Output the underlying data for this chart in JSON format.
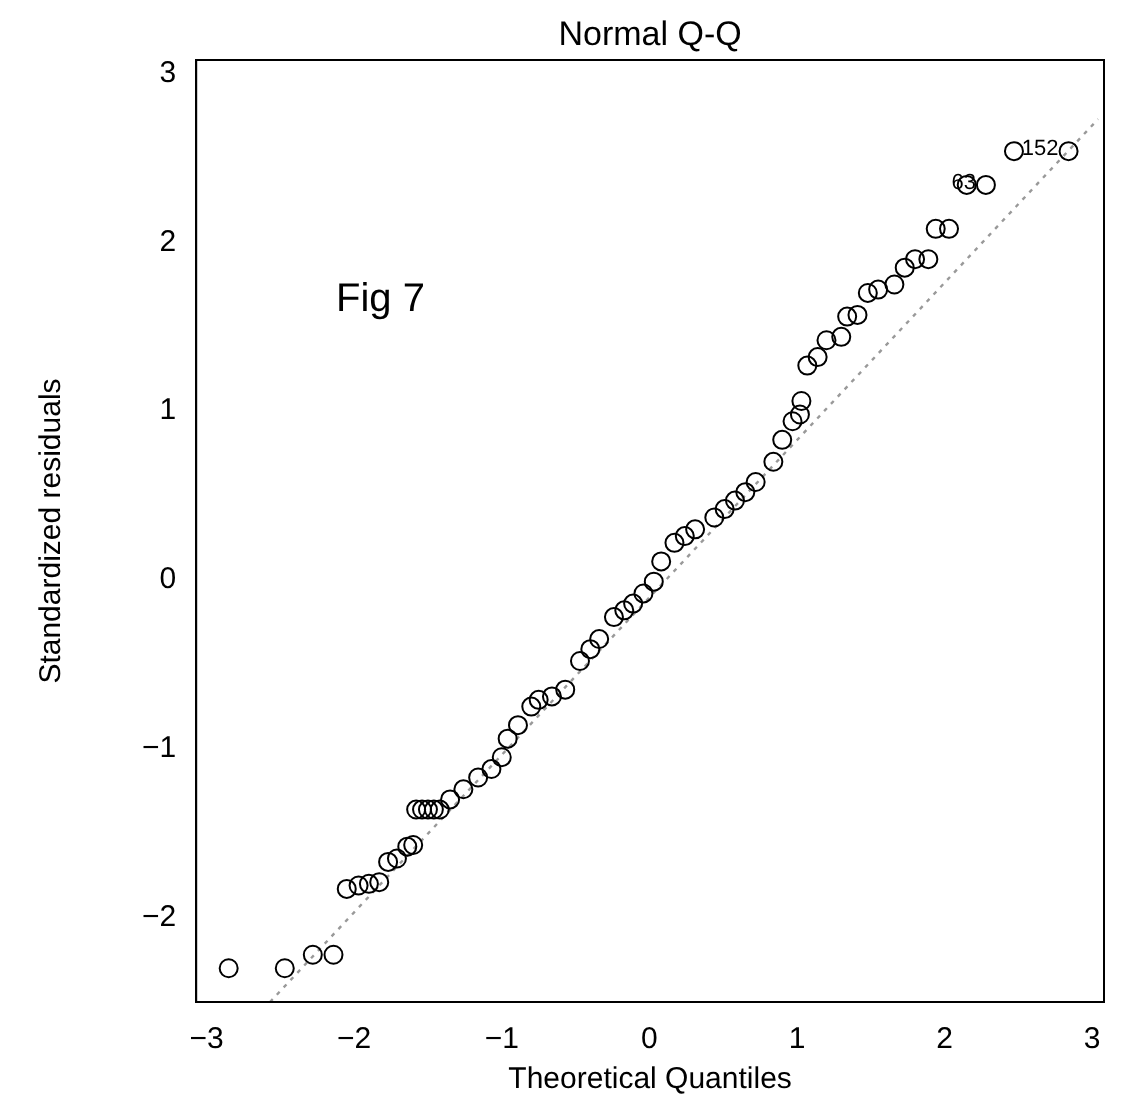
{
  "chart_data": {
    "type": "scatter",
    "title": "Normal Q-Q",
    "xlabel": "Theoretical Quantiles",
    "ylabel": "Standardized residuals",
    "annotations": [
      "Fig 7",
      {
        "text": "152",
        "x": 2.84,
        "y": 2.54
      },
      {
        "text": "63",
        "x": 2.28,
        "y": 2.34
      }
    ],
    "xlim": [
      -3.07,
      3.08
    ],
    "xticks": [
      -3,
      -2,
      -1,
      0,
      1,
      2,
      3
    ],
    "ylim": [
      -2.5,
      3.08
    ],
    "yticks": [
      -2,
      -1,
      0,
      1,
      2,
      3
    ],
    "grid": false,
    "legend": false,
    "marker": "circle",
    "series": [
      {
        "color": "#000000",
        "x": [
          -2.85,
          -2.47,
          -2.28,
          -2.14,
          -2.05,
          -1.97,
          -1.9,
          -1.83,
          -1.77,
          -1.71,
          -1.64,
          -1.6,
          -1.58,
          -1.54,
          -1.5,
          -1.46,
          -1.42,
          -1.35,
          -1.26,
          -1.16,
          -1.07,
          -1.0,
          -0.96,
          -0.89,
          -0.8,
          -0.75,
          -0.66,
          -0.57,
          -0.47,
          -0.4,
          -0.34,
          -0.24,
          -0.17,
          -0.11,
          -0.04,
          0.03,
          0.08,
          0.17,
          0.24,
          0.31,
          0.44,
          0.51,
          0.58,
          0.65,
          0.72,
          0.84,
          0.9,
          0.97,
          1.02,
          1.03,
          1.07,
          1.14,
          1.2,
          1.3,
          1.34,
          1.41,
          1.48,
          1.55,
          1.66,
          1.73,
          1.8,
          1.89,
          1.94,
          2.03,
          2.15,
          2.28,
          2.47,
          2.84
        ],
        "values": [
          -2.3,
          -2.3,
          -2.22,
          -2.22,
          -1.83,
          -1.81,
          -1.8,
          -1.79,
          -1.67,
          -1.65,
          -1.58,
          -1.57,
          -1.36,
          -1.36,
          -1.36,
          -1.36,
          -1.36,
          -1.3,
          -1.24,
          -1.17,
          -1.12,
          -1.05,
          -0.94,
          -0.86,
          -0.75,
          -0.71,
          -0.69,
          -0.65,
          -0.48,
          -0.41,
          -0.35,
          -0.22,
          -0.18,
          -0.14,
          -0.08,
          -0.01,
          0.11,
          0.22,
          0.26,
          0.3,
          0.37,
          0.42,
          0.47,
          0.52,
          0.58,
          0.7,
          0.83,
          0.94,
          0.98,
          1.06,
          1.27,
          1.32,
          1.42,
          1.44,
          1.56,
          1.57,
          1.7,
          1.72,
          1.75,
          1.85,
          1.9,
          1.9,
          2.08,
          2.08,
          2.34,
          2.34,
          2.54,
          2.54
        ]
      },
      {
        "type": "line",
        "color": "#999999",
        "line_style": "dotted",
        "marker": "none",
        "x": [
          -2.57,
          3.04
        ],
        "values": [
          -2.5,
          2.73
        ]
      }
    ]
  }
}
